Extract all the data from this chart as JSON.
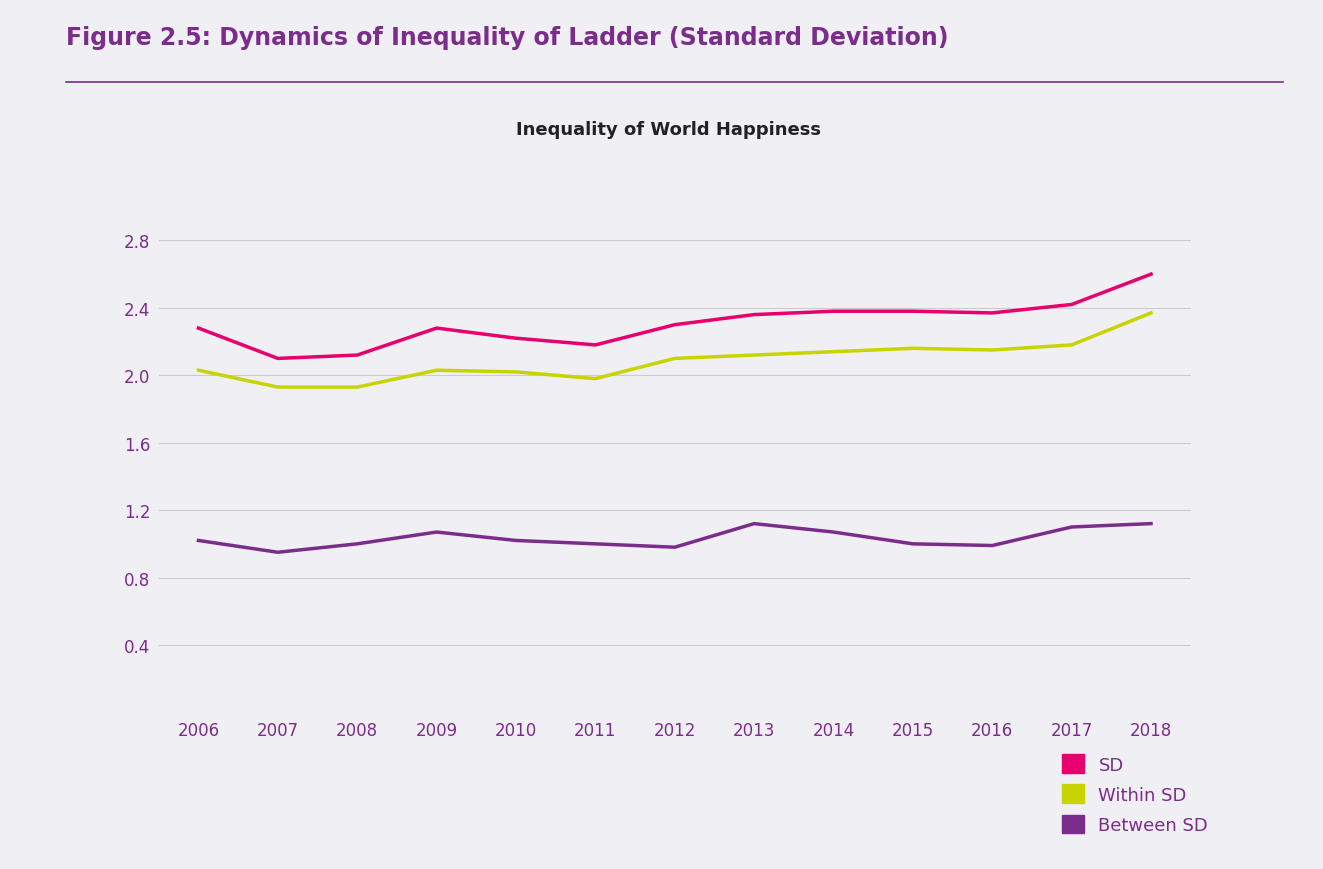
{
  "title": "Figure 2.5: Dynamics of Inequality of Ladder (Standard Deviation)",
  "subtitle": "Inequality of World Happiness",
  "years": [
    2006,
    2007,
    2008,
    2009,
    2010,
    2011,
    2012,
    2013,
    2014,
    2015,
    2016,
    2017,
    2018
  ],
  "sd": [
    2.28,
    2.1,
    2.12,
    2.28,
    2.22,
    2.18,
    2.3,
    2.36,
    2.38,
    2.38,
    2.37,
    2.42,
    2.6
  ],
  "within_sd": [
    2.03,
    1.93,
    1.93,
    2.03,
    2.02,
    1.98,
    2.1,
    2.12,
    2.14,
    2.16,
    2.15,
    2.18,
    2.37
  ],
  "between_sd": [
    1.02,
    0.95,
    1.0,
    1.07,
    1.02,
    1.0,
    0.98,
    1.12,
    1.07,
    1.0,
    0.99,
    1.1,
    1.12
  ],
  "sd_color": "#e8006e",
  "within_sd_color": "#c8d400",
  "between_sd_color": "#7b2d8b",
  "title_color": "#7b2d8b",
  "background_color": "#f0eff4",
  "plot_bg_color": "#f0eff4",
  "grid_color": "#cccccc",
  "tick_color": "#7b2d8b",
  "ylim": [
    0.0,
    3.2
  ],
  "yticks": [
    0.4,
    0.8,
    1.2,
    1.6,
    2.0,
    2.4,
    2.8
  ],
  "line_width": 2.5,
  "subtitle_fontsize": 13,
  "title_fontsize": 17,
  "tick_fontsize": 12,
  "legend_fontsize": 13
}
